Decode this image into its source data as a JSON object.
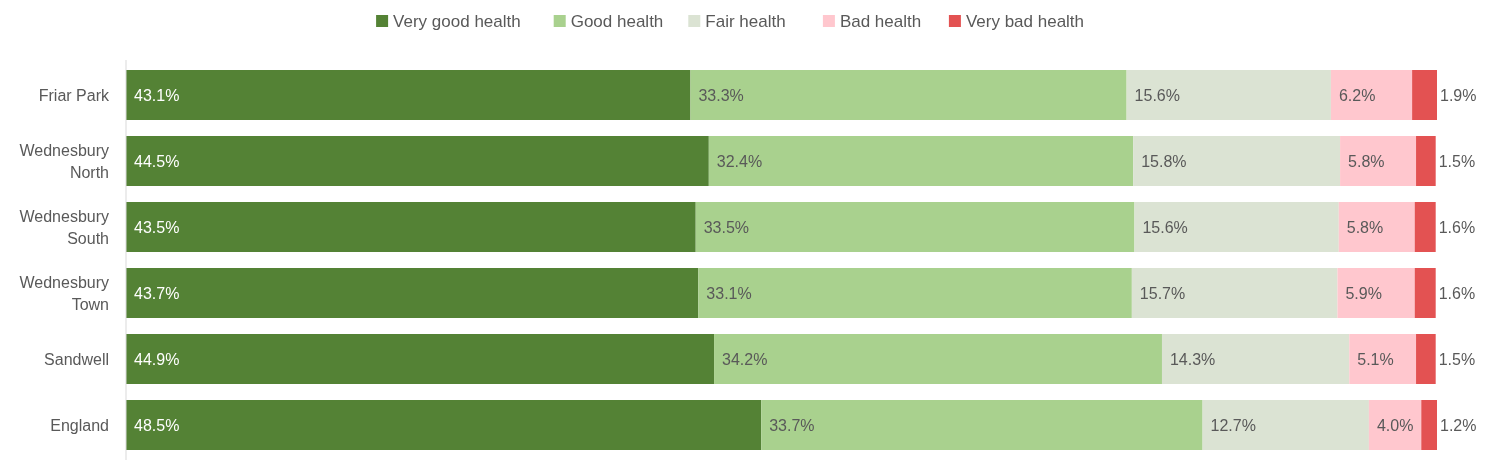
{
  "chart_data": {
    "type": "bar",
    "orientation": "horizontal",
    "stacked": true,
    "legend": "top",
    "categories": [
      "Friar Park",
      "Wednesbury North",
      "Wednesbury South",
      "Wednesbury Town",
      "Sandwell",
      "England"
    ],
    "series": [
      {
        "name": "Very good health",
        "color": "#548235",
        "values": [
          43.1,
          44.5,
          43.5,
          43.7,
          44.9,
          48.5
        ],
        "value_labels": [
          "43.1%",
          "44.5%",
          "43.5%",
          "43.7%",
          "44.9%",
          "48.5%"
        ]
      },
      {
        "name": "Good health",
        "color": "#a9d18e",
        "values": [
          33.3,
          32.4,
          33.5,
          33.1,
          34.2,
          33.7
        ],
        "value_labels": [
          "33.3%",
          "32.4%",
          "33.5%",
          "33.1%",
          "34.2%",
          "33.7%"
        ]
      },
      {
        "name": "Fair health",
        "color": "#dbe3d3",
        "values": [
          15.6,
          15.8,
          15.6,
          15.7,
          14.3,
          12.7
        ],
        "value_labels": [
          "15.6%",
          "15.8%",
          "15.6%",
          "15.7%",
          "14.3%",
          "12.7%"
        ]
      },
      {
        "name": "Bad health",
        "color": "#ffc7ce",
        "values": [
          6.2,
          5.8,
          5.8,
          5.9,
          5.1,
          4.0
        ],
        "value_labels": [
          "6.2%",
          "5.8%",
          "5.8%",
          "5.9%",
          "5.1%",
          "4.0%"
        ]
      },
      {
        "name": "Very bad health",
        "color": "#e35252",
        "values": [
          1.9,
          1.5,
          1.6,
          1.6,
          1.5,
          1.2
        ],
        "value_labels": [
          "1.9%",
          "1.5%",
          "1.6%",
          "1.6%",
          "1.5%",
          "1.2%"
        ]
      }
    ]
  }
}
